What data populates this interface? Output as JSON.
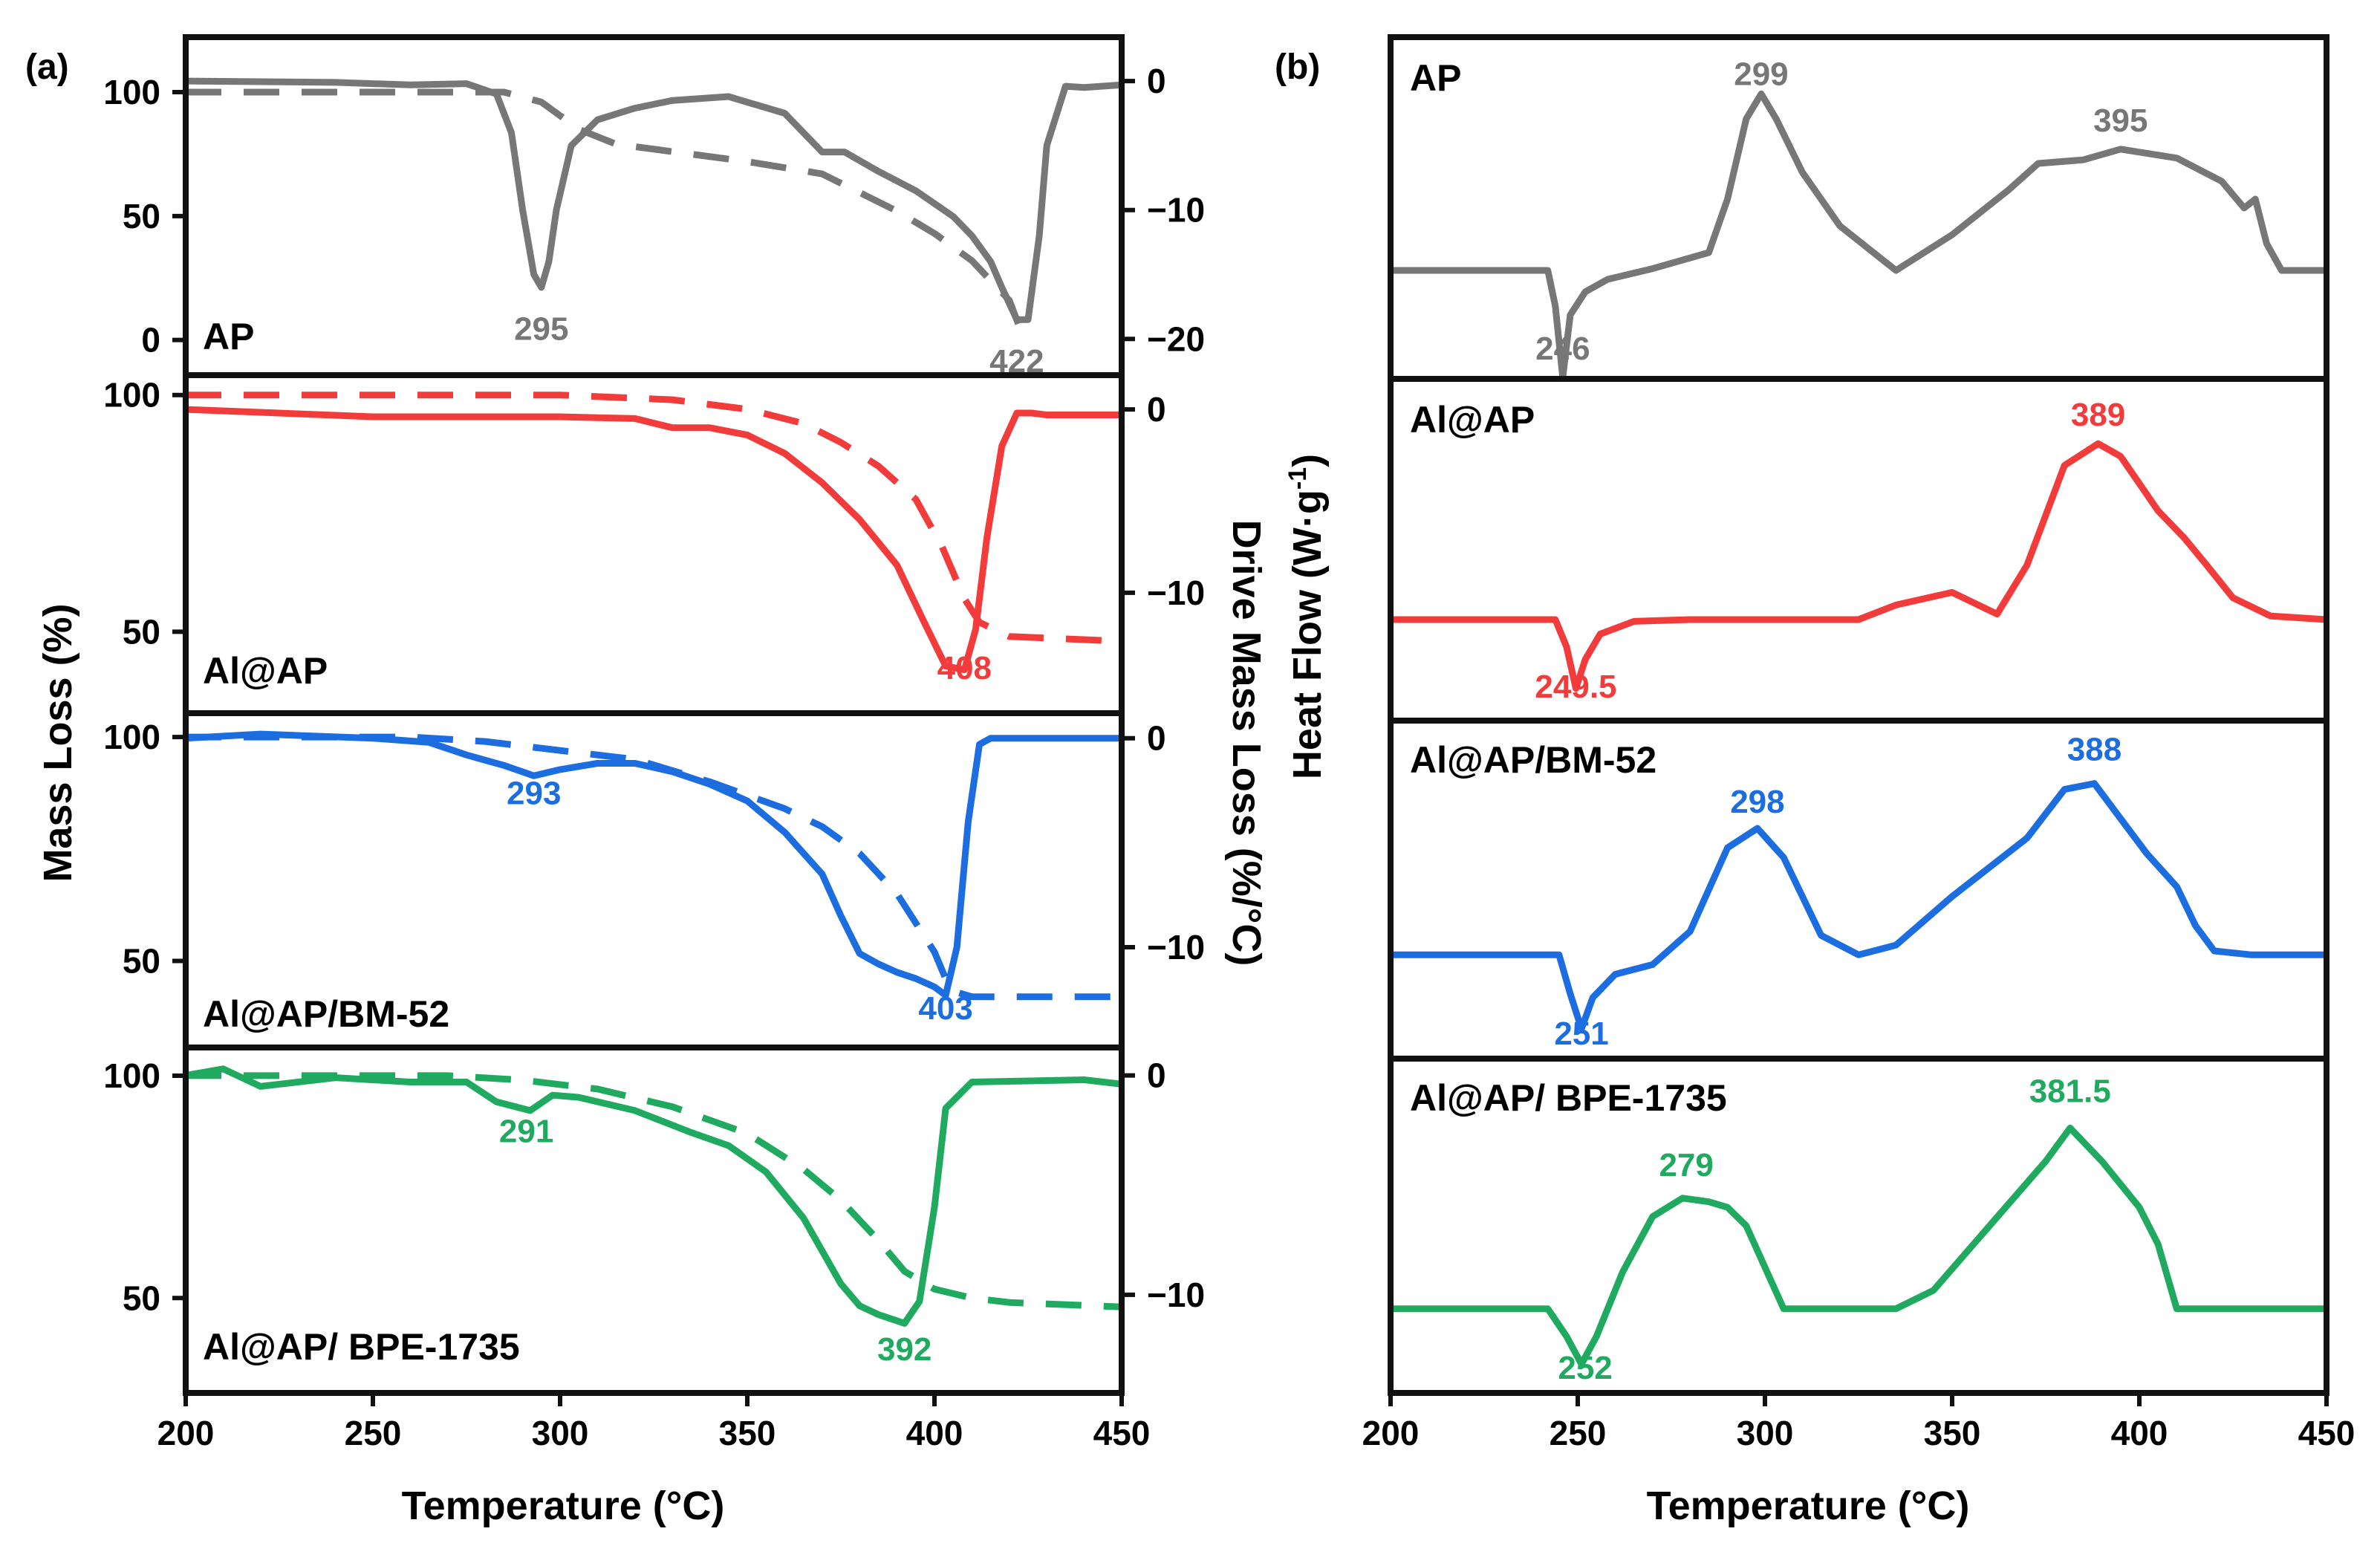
{
  "chart_data": [
    {
      "type": "line",
      "panel_label": "(a)",
      "xlabel": "Temperature (°C)",
      "ylabel": "Mass Loss (%)",
      "y2label": "Drive Mass Loss (%/°C)",
      "xlim": [
        200,
        450
      ],
      "xticks": [
        200,
        250,
        300,
        350,
        400,
        450
      ],
      "subplots": [
        {
          "name": "AP",
          "color": "#777777",
          "ylim": [
            -10,
            118
          ],
          "yticks": [
            0,
            50,
            100
          ],
          "y2lim": [
            -22,
            2.6
          ],
          "y2ticks": [
            0,
            -10,
            -20
          ],
          "annotations": [
            {
              "x": 295,
              "y": 0,
              "text": "295"
            },
            {
              "x": 422,
              "y": -13,
              "text": "422"
            }
          ],
          "series": [
            {
              "name": "Mass Loss",
              "style": "dashed",
              "axis": "left",
              "x": [
                200,
                285,
                295,
                305,
                315,
                330,
                350,
                370,
                390,
                400,
                410,
                420,
                424
              ],
              "y": [
                100,
                100,
                96,
                85,
                79,
                76,
                72,
                67,
                52,
                43,
                32,
                16,
                0
              ]
            },
            {
              "name": "Drive Mass Loss",
              "style": "solid",
              "axis": "right",
              "x": [
                200,
                240,
                260,
                275,
                283,
                287,
                290,
                293,
                295,
                297,
                299,
                303,
                310,
                320,
                330,
                345,
                360,
                370,
                376,
                385,
                395,
                405,
                410,
                415,
                418,
                422,
                425,
                428,
                430,
                435,
                440,
                450
              ],
              "y": [
                0,
                -0.1,
                -0.3,
                -0.2,
                -1.0,
                -4,
                -10,
                -15,
                -16,
                -14,
                -10,
                -5,
                -3,
                -2.1,
                -1.5,
                -1.2,
                -2.5,
                -5.5,
                -5.5,
                -7,
                -8.5,
                -10.5,
                -12,
                -14,
                -16,
                -18.5,
                -18.5,
                -12,
                -5,
                -0.4,
                -0.5,
                -0.3
              ]
            }
          ]
        },
        {
          "name": "Al@AP",
          "color": "#f23c3c",
          "ylim": [
            35,
            102
          ],
          "yticks": [
            50,
            100
          ],
          "y2lim": [
            -16,
            1.3
          ],
          "y2ticks": [
            0,
            -10
          ],
          "annotations": [
            {
              "x": 408,
              "y": 40,
              "text": "408"
            }
          ],
          "series": [
            {
              "name": "Mass Loss",
              "style": "dashed",
              "axis": "left",
              "x": [
                200,
                300,
                330,
                350,
                365,
                375,
                385,
                395,
                402,
                408,
                412,
                420,
                450
              ],
              "y": [
                100,
                100,
                99,
                97,
                94,
                90,
                85,
                78,
                68,
                57,
                52,
                49,
                48
              ]
            },
            {
              "name": "Drive Mass Loss",
              "style": "solid",
              "axis": "right",
              "x": [
                200,
                250,
                300,
                320,
                330,
                340,
                350,
                360,
                370,
                380,
                390,
                397,
                403,
                408,
                411,
                414,
                418,
                422,
                426,
                430,
                450
              ],
              "y": [
                0,
                -0.4,
                -0.4,
                -0.5,
                -1.0,
                -1.0,
                -1.4,
                -2.4,
                -4,
                -6,
                -8.5,
                -11.5,
                -14,
                -14.2,
                -12,
                -7,
                -2,
                -0.2,
                -0.2,
                -0.3,
                -0.3
              ]
            }
          ]
        },
        {
          "name": "Al@AP/BM-52",
          "color": "#1c6de0",
          "ylim": [
            33,
            103
          ],
          "yticks": [
            50,
            100
          ],
          "y2lim": [
            -14.3,
            0.7
          ],
          "y2ticks": [
            0,
            -10
          ],
          "annotations": [
            {
              "x": 293,
              "y": 85,
              "text": "293"
            },
            {
              "x": 403,
              "y": 37,
              "text": "403"
            }
          ],
          "series": [
            {
              "name": "Mass Loss",
              "style": "dashed",
              "axis": "left",
              "x": [
                200,
                260,
                280,
                300,
                320,
                340,
                360,
                370,
                380,
                390,
                400,
                403,
                406,
                410,
                450
              ],
              "y": [
                100,
                100,
                99,
                97,
                95,
                90,
                84,
                80,
                74,
                65,
                52,
                46,
                43,
                42,
                42
              ]
            },
            {
              "name": "Drive Mass Loss",
              "style": "solid",
              "axis": "right",
              "x": [
                200,
                220,
                250,
                265,
                275,
                285,
                293,
                300,
                310,
                320,
                330,
                340,
                350,
                360,
                370,
                375,
                380,
                385,
                390,
                395,
                400,
                403,
                406,
                409,
                412,
                415,
                450
              ],
              "y": [
                0,
                0.2,
                0,
                -0.2,
                -0.8,
                -1.3,
                -1.8,
                -1.5,
                -1.2,
                -1.2,
                -1.6,
                -2.2,
                -3.0,
                -4.5,
                -6.5,
                -8.5,
                -10.3,
                -10.8,
                -11.2,
                -11.5,
                -11.9,
                -12.3,
                -10,
                -4,
                -0.3,
                0,
                0
              ]
            }
          ]
        },
        {
          "name": "Al@AP/ BPE-1735",
          "color": "#1faa60",
          "ylim": [
            31,
            104
          ],
          "yticks": [
            50,
            100
          ],
          "y2lim": [
            -14,
            0.8
          ],
          "y2ticks": [
            0,
            -10
          ],
          "annotations": [
            {
              "x": 291,
              "y": 85,
              "text": "291"
            },
            {
              "x": 392,
              "y": 36,
              "text": "392"
            }
          ],
          "series": [
            {
              "name": "Mass Loss",
              "style": "dashed",
              "axis": "left",
              "x": [
                200,
                270,
                290,
                310,
                330,
                350,
                365,
                375,
                385,
                392,
                400,
                410,
                420,
                450
              ],
              "y": [
                100,
                100,
                99,
                97,
                93,
                87,
                79,
                72,
                63,
                56,
                52,
                50,
                49,
                48
              ]
            },
            {
              "name": "Drive Mass Loss",
              "style": "solid",
              "axis": "right",
              "x": [
                200,
                210,
                220,
                240,
                260,
                275,
                283,
                292,
                298,
                305,
                320,
                335,
                345,
                355,
                365,
                375,
                380,
                385,
                392,
                396,
                400,
                403,
                410,
                440,
                450
              ],
              "y": [
                0,
                0.3,
                -0.5,
                -0.1,
                -0.3,
                -0.3,
                -1.2,
                -1.6,
                -0.9,
                -1.0,
                -1.6,
                -2.6,
                -3.2,
                -4.4,
                -6.5,
                -9.5,
                -10.5,
                -10.9,
                -11.3,
                -10.3,
                -6,
                -1.5,
                -0.3,
                -0.2,
                -0.4
              ]
            }
          ]
        }
      ]
    },
    {
      "type": "line",
      "panel_label": "(b)",
      "xlabel": "Temperature (°C)",
      "ylabel": "Heat Flow (W·g",
      "ylabel_superscript": "-1",
      "ylabel_close": ")",
      "xlim": [
        200,
        450
      ],
      "xticks": [
        200,
        250,
        300,
        350,
        400,
        450
      ],
      "subplots": [
        {
          "name": "AP",
          "color": "#777777",
          "ylim": [
            -0.55,
            1.25
          ],
          "annotations": [
            {
              "x": 299,
              "y": 1.04,
              "text": "299"
            },
            {
              "x": 395,
              "y": 0.78,
              "text": "395"
            },
            {
              "x": 246,
              "y": -0.5,
              "text": "246"
            }
          ],
          "series": [
            {
              "name": "Heat Flow",
              "style": "solid",
              "x": [
                200,
                242,
                244,
                246,
                248,
                252,
                258,
                270,
                285,
                290,
                295,
                299,
                303,
                310,
                320,
                335,
                350,
                365,
                373,
                385,
                395,
                410,
                422,
                428,
                431,
                434,
                438,
                450
              ],
              "y": [
                0,
                0,
                -0.2,
                -0.6,
                -0.25,
                -0.12,
                -0.05,
                0.01,
                0.1,
                0.4,
                0.85,
                0.99,
                0.85,
                0.55,
                0.25,
                0,
                0.2,
                0.45,
                0.6,
                0.62,
                0.68,
                0.63,
                0.5,
                0.35,
                0.4,
                0.15,
                0,
                0
              ]
            }
          ]
        },
        {
          "name": "Al@AP",
          "color": "#f23c3c",
          "ylim": [
            -0.5,
            1.27
          ],
          "annotations": [
            {
              "x": 389,
              "y": 1.07,
              "text": "389"
            },
            {
              "x": 249.5,
              "y": -0.43,
              "text": "249.5"
            }
          ],
          "series": [
            {
              "name": "Heat Flow",
              "style": "solid",
              "x": [
                200,
                244,
                247,
                249.5,
                252,
                256,
                265,
                280,
                325,
                335,
                350,
                355,
                362,
                370,
                380,
                389,
                395,
                405,
                412,
                418,
                425,
                435,
                450
              ],
              "y": [
                0,
                0,
                -0.15,
                -0.38,
                -0.22,
                -0.08,
                -0.01,
                0,
                0,
                0.08,
                0.15,
                0.1,
                0.03,
                0.3,
                0.85,
                0.97,
                0.9,
                0.6,
                0.45,
                0.3,
                0.12,
                0.02,
                0
              ]
            }
          ]
        },
        {
          "name": "Al@AP/BM-52",
          "color": "#1c6de0",
          "ylim": [
            -0.48,
            1.15
          ],
          "annotations": [
            {
              "x": 298,
              "y": 0.73,
              "text": "298"
            },
            {
              "x": 388,
              "y": 1.0,
              "text": "388"
            },
            {
              "x": 251,
              "y": -0.46,
              "text": "251"
            }
          ],
          "series": [
            {
              "name": "Heat Flow",
              "style": "solid",
              "x": [
                200,
                245,
                248,
                251,
                254,
                260,
                270,
                280,
                290,
                298,
                305,
                315,
                325,
                335,
                350,
                370,
                380,
                388,
                395,
                402,
                410,
                415,
                420,
                430,
                450
              ],
              "y": [
                0,
                0,
                -0.2,
                -0.38,
                -0.22,
                -0.1,
                -0.05,
                0.12,
                0.55,
                0.65,
                0.5,
                0.1,
                0,
                0.05,
                0.3,
                0.6,
                0.85,
                0.88,
                0.7,
                0.52,
                0.35,
                0.15,
                0.02,
                0,
                0
              ]
            }
          ]
        },
        {
          "name": "Al@AP/ BPE-1735",
          "color": "#1faa60",
          "ylim": [
            -0.4,
            1.3
          ],
          "annotations": [
            {
              "x": 279,
              "y": 0.72,
              "text": "279"
            },
            {
              "x": 381.5,
              "y": 1.12,
              "text": "381.5"
            },
            {
              "x": 252,
              "y": -0.38,
              "text": "252"
            }
          ],
          "series": [
            {
              "name": "Heat Flow",
              "style": "solid",
              "x": [
                200,
                242,
                247,
                251,
                255,
                262,
                270,
                278,
                285,
                290,
                295,
                305,
                335,
                345,
                360,
                375,
                381.5,
                390,
                400,
                405,
                410,
                450
              ],
              "y": [
                0,
                0,
                -0.15,
                -0.3,
                -0.15,
                0.2,
                0.5,
                0.6,
                0.58,
                0.55,
                0.45,
                0,
                0,
                0.1,
                0.45,
                0.8,
                0.98,
                0.8,
                0.55,
                0.35,
                0,
                0
              ]
            }
          ]
        }
      ]
    }
  ]
}
